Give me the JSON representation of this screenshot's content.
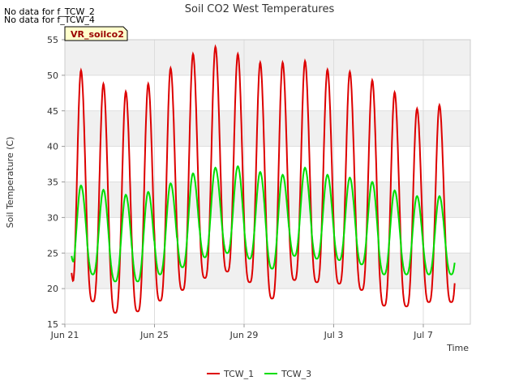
{
  "chart_data": {
    "type": "line",
    "title": "Soil CO2 West Temperatures",
    "xlabel": "Time",
    "ylabel": "Soil Temperature (C)",
    "ylim": [
      15,
      55
    ],
    "xlim_days": [
      0,
      18.1
    ],
    "yticks": [
      15,
      20,
      25,
      30,
      35,
      40,
      45,
      50,
      55
    ],
    "xticks": [
      {
        "day": 0,
        "label": "Jun 21"
      },
      {
        "day": 4,
        "label": "Jun 25"
      },
      {
        "day": 8,
        "label": "Jun 29"
      },
      {
        "day": 12,
        "label": "Jul 3"
      },
      {
        "day": 16,
        "label": "Jul 7"
      }
    ],
    "grid": true,
    "legend_position": "bottom-center",
    "no_data_notes": [
      "No data for f_TCW_2",
      "No data for f_TCW_4"
    ],
    "site_label": "VR_soilco2",
    "series": [
      {
        "name": "TCW_1",
        "color": "#dd0000",
        "x_start_day": 0.3,
        "x_end_day": 17.4,
        "daily_max": [
          50.7,
          48.8,
          47.7,
          48.8,
          51.0,
          53.0,
          54.0,
          53.0,
          51.8,
          51.8,
          52.0,
          50.8,
          50.5,
          49.3,
          47.6,
          45.3,
          45.8
        ],
        "daily_min": [
          18.2,
          18.2,
          16.6,
          16.8,
          18.3,
          19.8,
          21.5,
          22.4,
          20.9,
          18.6,
          21.2,
          20.9,
          20.7,
          19.8,
          17.6,
          17.5,
          18.1
        ],
        "start_value": 22.2,
        "end_value": 22.3
      },
      {
        "name": "TCW_3",
        "color": "#00dd00",
        "x_start_day": 0.3,
        "x_end_day": 17.4,
        "daily_max": [
          34.5,
          33.9,
          33.2,
          33.6,
          34.8,
          36.2,
          37.0,
          37.2,
          36.4,
          36.0,
          37.0,
          36.0,
          35.6,
          35.0,
          33.8,
          33.0,
          33.0
        ],
        "daily_min": [
          21.8,
          22.0,
          21.0,
          21.0,
          22.0,
          23.0,
          24.4,
          25.0,
          24.2,
          22.8,
          24.6,
          24.2,
          24.0,
          23.4,
          22.0,
          22.0,
          22.0
        ],
        "start_value": 24.6,
        "end_value": 25.8
      }
    ]
  }
}
